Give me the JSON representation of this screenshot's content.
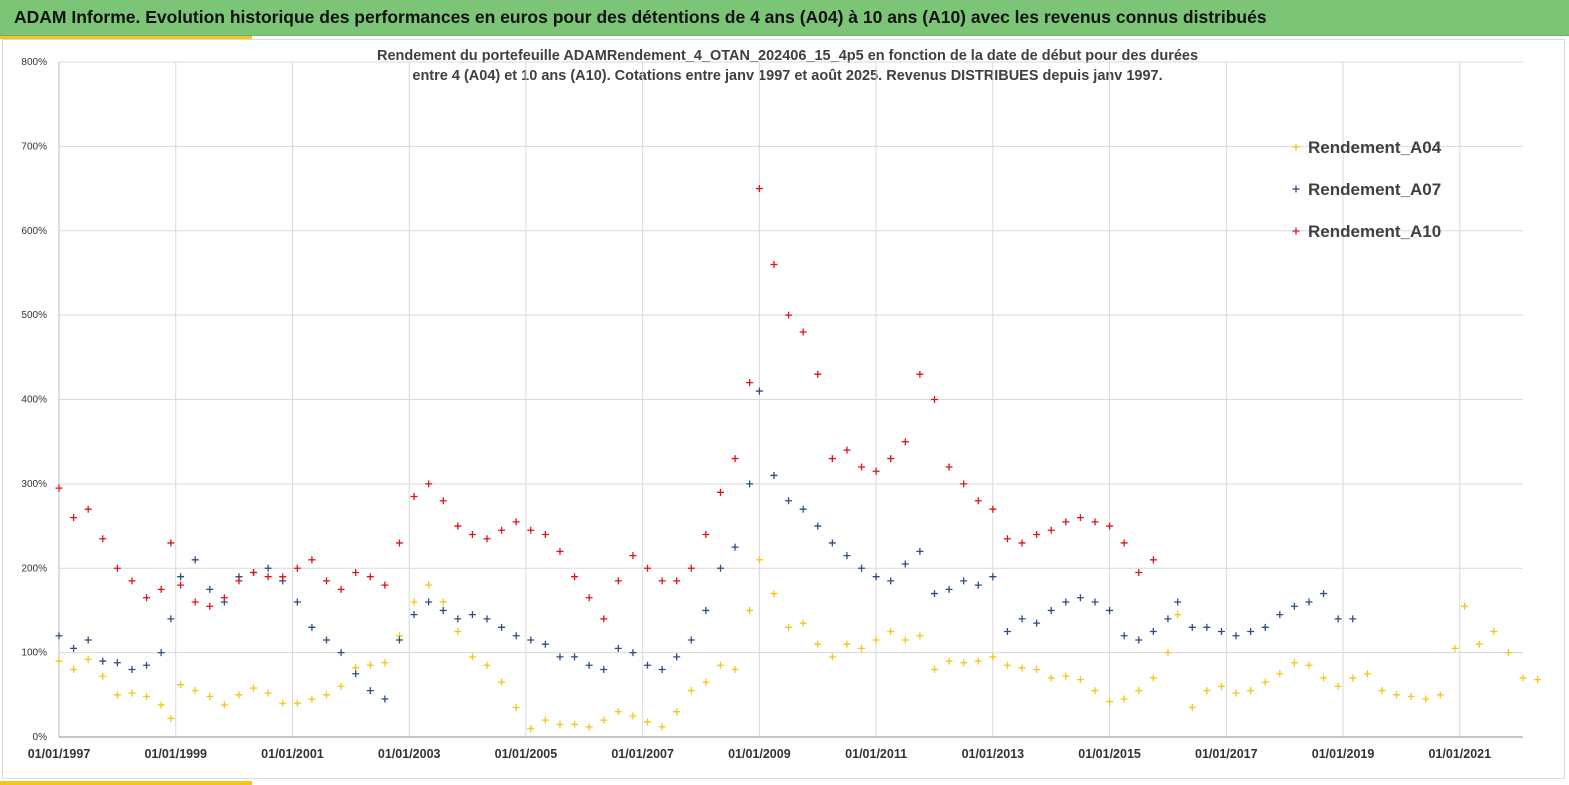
{
  "header": {
    "title": "ADAM Informe. Evolution historique des performances en euros pour des détentions de 4 ans (A04) à 10 ans (A10) avec les revenus connus distribués"
  },
  "chart_data": {
    "type": "scatter",
    "title_line1": "Rendement du portefeuille ADAMRendement_4_OTAN_202406_15_4p5  en fonction de la date de début pour des durées",
    "title_line2": "entre 4 (A04) et 10 ans (A10). Cotations entre janv 1997 et août 2025. Revenus DISTRIBUES depuis janv 1997.",
    "xlabel": "",
    "ylabel": "",
    "x_range": [
      "1997-01-01",
      "2022-02-01"
    ],
    "ylim": [
      0,
      800
    ],
    "y_ticks": [
      "0%",
      "100%",
      "200%",
      "300%",
      "400%",
      "500%",
      "600%",
      "700%",
      "800%"
    ],
    "y_tick_values": [
      0,
      100,
      200,
      300,
      400,
      500,
      600,
      700,
      800
    ],
    "x_ticks": [
      "01/01/1997",
      "01/01/1999",
      "01/01/2001",
      "01/01/2003",
      "01/01/2005",
      "01/01/2007",
      "01/01/2009",
      "01/01/2011",
      "01/01/2013",
      "01/01/2015",
      "01/01/2017",
      "01/01/2019",
      "01/01/2021"
    ],
    "x_tick_years": [
      1997,
      1999,
      2001,
      2003,
      2005,
      2007,
      2009,
      2011,
      2013,
      2015,
      2017,
      2019,
      2021
    ],
    "grid": true,
    "legend_position": "top-right",
    "marker": "+",
    "series": [
      {
        "name": "Rendement_A04",
        "color": "#f5c518",
        "points": [
          [
            "1997-01",
            90
          ],
          [
            "1997-04",
            80
          ],
          [
            "1997-07",
            92
          ],
          [
            "1997-10",
            72
          ],
          [
            "1998-01",
            50
          ],
          [
            "1998-04",
            52
          ],
          [
            "1998-07",
            48
          ],
          [
            "1998-10",
            38
          ],
          [
            "1998-12",
            22
          ],
          [
            "1999-02",
            62
          ],
          [
            "1999-05",
            55
          ],
          [
            "1999-08",
            48
          ],
          [
            "1999-11",
            38
          ],
          [
            "2000-02",
            50
          ],
          [
            "2000-05",
            58
          ],
          [
            "2000-08",
            52
          ],
          [
            "2000-11",
            40
          ],
          [
            "2001-02",
            40
          ],
          [
            "2001-05",
            45
          ],
          [
            "2001-08",
            50
          ],
          [
            "2001-11",
            60
          ],
          [
            "2002-02",
            82
          ],
          [
            "2002-05",
            85
          ],
          [
            "2002-08",
            88
          ],
          [
            "2002-11",
            120
          ],
          [
            "2003-02",
            160
          ],
          [
            "2003-05",
            180
          ],
          [
            "2003-08",
            160
          ],
          [
            "2003-11",
            125
          ],
          [
            "2004-02",
            95
          ],
          [
            "2004-05",
            85
          ],
          [
            "2004-08",
            65
          ],
          [
            "2004-11",
            35
          ],
          [
            "2005-02",
            10
          ],
          [
            "2005-05",
            20
          ],
          [
            "2005-08",
            15
          ],
          [
            "2005-11",
            15
          ],
          [
            "2006-02",
            12
          ],
          [
            "2006-05",
            20
          ],
          [
            "2006-08",
            30
          ],
          [
            "2006-11",
            25
          ],
          [
            "2007-02",
            18
          ],
          [
            "2007-05",
            12
          ],
          [
            "2007-08",
            30
          ],
          [
            "2007-11",
            55
          ],
          [
            "2008-02",
            65
          ],
          [
            "2008-05",
            85
          ],
          [
            "2008-08",
            80
          ],
          [
            "2008-11",
            150
          ],
          [
            "2009-01",
            210
          ],
          [
            "2009-04",
            170
          ],
          [
            "2009-07",
            130
          ],
          [
            "2009-10",
            135
          ],
          [
            "2010-01",
            110
          ],
          [
            "2010-04",
            95
          ],
          [
            "2010-07",
            110
          ],
          [
            "2010-10",
            105
          ],
          [
            "2011-01",
            115
          ],
          [
            "2011-04",
            125
          ],
          [
            "2011-07",
            115
          ],
          [
            "2011-10",
            120
          ],
          [
            "2012-01",
            80
          ],
          [
            "2012-04",
            90
          ],
          [
            "2012-07",
            88
          ],
          [
            "2012-10",
            90
          ],
          [
            "2013-01",
            95
          ],
          [
            "2013-04",
            85
          ],
          [
            "2013-07",
            82
          ],
          [
            "2013-10",
            80
          ],
          [
            "2014-01",
            70
          ],
          [
            "2014-04",
            72
          ],
          [
            "2014-07",
            68
          ],
          [
            "2014-10",
            55
          ],
          [
            "2015-01",
            42
          ],
          [
            "2015-04",
            45
          ],
          [
            "2015-07",
            55
          ],
          [
            "2015-10",
            70
          ],
          [
            "2016-01",
            100
          ],
          [
            "2016-03",
            145
          ],
          [
            "2016-06",
            35
          ],
          [
            "2016-09",
            55
          ],
          [
            "2016-12",
            60
          ],
          [
            "2017-03",
            52
          ],
          [
            "2017-06",
            55
          ],
          [
            "2017-09",
            65
          ],
          [
            "2017-12",
            75
          ],
          [
            "2018-03",
            88
          ],
          [
            "2018-06",
            85
          ],
          [
            "2018-09",
            70
          ],
          [
            "2018-12",
            60
          ],
          [
            "2019-03",
            70
          ],
          [
            "2019-06",
            75
          ],
          [
            "2019-09",
            55
          ],
          [
            "2019-12",
            50
          ],
          [
            "2020-03",
            48
          ],
          [
            "2020-06",
            45
          ],
          [
            "2020-09",
            50
          ],
          [
            "2020-12",
            105
          ],
          [
            "2021-02",
            155
          ],
          [
            "2021-05",
            110
          ],
          [
            "2021-08",
            125
          ],
          [
            "2021-11",
            100
          ],
          [
            "2022-02",
            70
          ],
          [
            "2022-05",
            68
          ]
        ]
      },
      {
        "name": "Rendement_A07",
        "color": "#2f4e7d",
        "points": [
          [
            "1997-01",
            120
          ],
          [
            "1997-04",
            105
          ],
          [
            "1997-07",
            115
          ],
          [
            "1997-10",
            90
          ],
          [
            "1998-01",
            88
          ],
          [
            "1998-04",
            80
          ],
          [
            "1998-07",
            85
          ],
          [
            "1998-10",
            100
          ],
          [
            "1998-12",
            140
          ],
          [
            "1999-02",
            190
          ],
          [
            "1999-05",
            210
          ],
          [
            "1999-08",
            175
          ],
          [
            "1999-11",
            160
          ],
          [
            "2000-02",
            190
          ],
          [
            "2000-05",
            195
          ],
          [
            "2000-08",
            200
          ],
          [
            "2000-11",
            185
          ],
          [
            "2001-02",
            160
          ],
          [
            "2001-05",
            130
          ],
          [
            "2001-08",
            115
          ],
          [
            "2001-11",
            100
          ],
          [
            "2002-02",
            75
          ],
          [
            "2002-05",
            55
          ],
          [
            "2002-08",
            45
          ],
          [
            "2002-11",
            115
          ],
          [
            "2003-02",
            145
          ],
          [
            "2003-05",
            160
          ],
          [
            "2003-08",
            150
          ],
          [
            "2003-11",
            140
          ],
          [
            "2004-02",
            145
          ],
          [
            "2004-05",
            140
          ],
          [
            "2004-08",
            130
          ],
          [
            "2004-11",
            120
          ],
          [
            "2005-02",
            115
          ],
          [
            "2005-05",
            110
          ],
          [
            "2005-08",
            95
          ],
          [
            "2005-11",
            95
          ],
          [
            "2006-02",
            85
          ],
          [
            "2006-05",
            80
          ],
          [
            "2006-08",
            105
          ],
          [
            "2006-11",
            100
          ],
          [
            "2007-02",
            85
          ],
          [
            "2007-05",
            80
          ],
          [
            "2007-08",
            95
          ],
          [
            "2007-11",
            115
          ],
          [
            "2008-02",
            150
          ],
          [
            "2008-05",
            200
          ],
          [
            "2008-08",
            225
          ],
          [
            "2008-11",
            300
          ],
          [
            "2009-01",
            410
          ],
          [
            "2009-04",
            310
          ],
          [
            "2009-07",
            280
          ],
          [
            "2009-10",
            270
          ],
          [
            "2010-01",
            250
          ],
          [
            "2010-04",
            230
          ],
          [
            "2010-07",
            215
          ],
          [
            "2010-10",
            200
          ],
          [
            "2011-01",
            190
          ],
          [
            "2011-04",
            185
          ],
          [
            "2011-07",
            205
          ],
          [
            "2011-10",
            220
          ],
          [
            "2012-01",
            170
          ],
          [
            "2012-04",
            175
          ],
          [
            "2012-07",
            185
          ],
          [
            "2012-10",
            180
          ],
          [
            "2013-01",
            190
          ],
          [
            "2013-04",
            125
          ],
          [
            "2013-07",
            140
          ],
          [
            "2013-10",
            135
          ],
          [
            "2014-01",
            150
          ],
          [
            "2014-04",
            160
          ],
          [
            "2014-07",
            165
          ],
          [
            "2014-10",
            160
          ],
          [
            "2015-01",
            150
          ],
          [
            "2015-04",
            120
          ],
          [
            "2015-07",
            115
          ],
          [
            "2015-10",
            125
          ],
          [
            "2016-01",
            140
          ],
          [
            "2016-03",
            160
          ],
          [
            "2016-06",
            130
          ],
          [
            "2016-09",
            130
          ],
          [
            "2016-12",
            125
          ],
          [
            "2017-03",
            120
          ],
          [
            "2017-06",
            125
          ],
          [
            "2017-09",
            130
          ],
          [
            "2017-12",
            145
          ],
          [
            "2018-03",
            155
          ],
          [
            "2018-06",
            160
          ],
          [
            "2018-09",
            170
          ],
          [
            "2018-12",
            140
          ],
          [
            "2019-03",
            140
          ]
        ]
      },
      {
        "name": "Rendement_A10",
        "color": "#e0121b",
        "points": [
          [
            "1997-01",
            295
          ],
          [
            "1997-04",
            260
          ],
          [
            "1997-07",
            270
          ],
          [
            "1997-10",
            235
          ],
          [
            "1998-01",
            200
          ],
          [
            "1998-04",
            185
          ],
          [
            "1998-07",
            165
          ],
          [
            "1998-10",
            175
          ],
          [
            "1998-12",
            230
          ],
          [
            "1999-02",
            180
          ],
          [
            "1999-05",
            160
          ],
          [
            "1999-08",
            155
          ],
          [
            "1999-11",
            165
          ],
          [
            "2000-02",
            185
          ],
          [
            "2000-05",
            195
          ],
          [
            "2000-08",
            190
          ],
          [
            "2000-11",
            190
          ],
          [
            "2001-02",
            200
          ],
          [
            "2001-05",
            210
          ],
          [
            "2001-08",
            185
          ],
          [
            "2001-11",
            175
          ],
          [
            "2002-02",
            195
          ],
          [
            "2002-05",
            190
          ],
          [
            "2002-08",
            180
          ],
          [
            "2002-11",
            230
          ],
          [
            "2003-02",
            285
          ],
          [
            "2003-05",
            300
          ],
          [
            "2003-08",
            280
          ],
          [
            "2003-11",
            250
          ],
          [
            "2004-02",
            240
          ],
          [
            "2004-05",
            235
          ],
          [
            "2004-08",
            245
          ],
          [
            "2004-11",
            255
          ],
          [
            "2005-02",
            245
          ],
          [
            "2005-05",
            240
          ],
          [
            "2005-08",
            220
          ],
          [
            "2005-11",
            190
          ],
          [
            "2006-02",
            165
          ],
          [
            "2006-05",
            140
          ],
          [
            "2006-08",
            185
          ],
          [
            "2006-11",
            215
          ],
          [
            "2007-02",
            200
          ],
          [
            "2007-05",
            185
          ],
          [
            "2007-08",
            185
          ],
          [
            "2007-11",
            200
          ],
          [
            "2008-02",
            240
          ],
          [
            "2008-05",
            290
          ],
          [
            "2008-08",
            330
          ],
          [
            "2008-11",
            420
          ],
          [
            "2009-01",
            650
          ],
          [
            "2009-04",
            560
          ],
          [
            "2009-07",
            500
          ],
          [
            "2009-10",
            480
          ],
          [
            "2010-01",
            430
          ],
          [
            "2010-04",
            330
          ],
          [
            "2010-07",
            340
          ],
          [
            "2010-10",
            320
          ],
          [
            "2011-01",
            315
          ],
          [
            "2011-04",
            330
          ],
          [
            "2011-07",
            350
          ],
          [
            "2011-10",
            430
          ],
          [
            "2012-01",
            400
          ],
          [
            "2012-04",
            320
          ],
          [
            "2012-07",
            300
          ],
          [
            "2012-10",
            280
          ],
          [
            "2013-01",
            270
          ],
          [
            "2013-04",
            235
          ],
          [
            "2013-07",
            230
          ],
          [
            "2013-10",
            240
          ],
          [
            "2014-01",
            245
          ],
          [
            "2014-04",
            255
          ],
          [
            "2014-07",
            260
          ],
          [
            "2014-10",
            255
          ],
          [
            "2015-01",
            250
          ],
          [
            "2015-04",
            230
          ],
          [
            "2015-07",
            195
          ],
          [
            "2015-10",
            210
          ]
        ]
      }
    ]
  }
}
